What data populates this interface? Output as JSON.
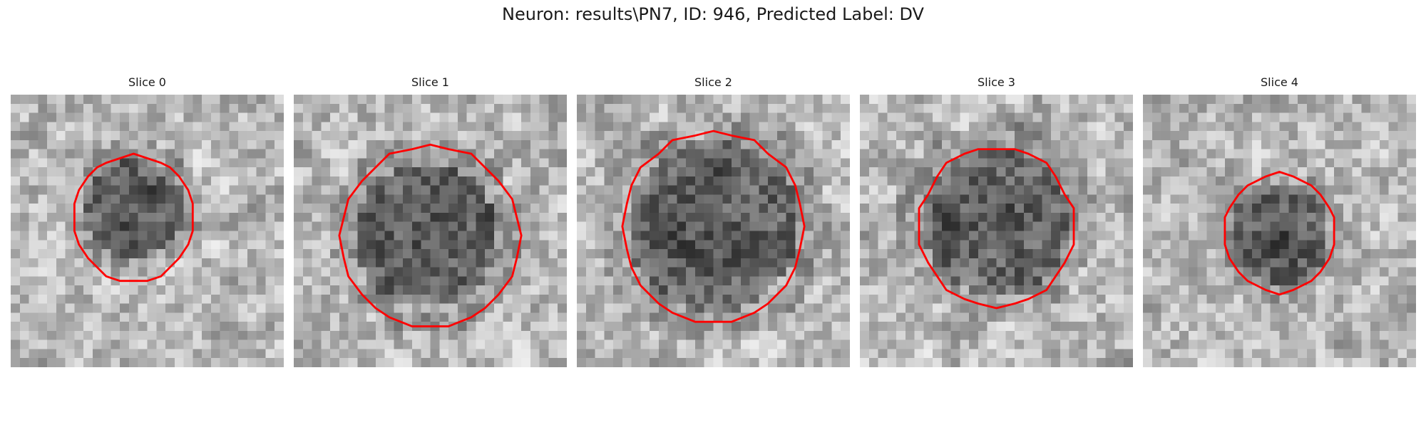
{
  "figure": {
    "title": "Neuron: results\\PN7, ID: 946, Predicted Label: DV"
  },
  "panels": [
    {
      "title": "Slice 0",
      "roi": {
        "cx": 13.5,
        "cy": 13.6,
        "rx": 6.5,
        "ry": 7.0,
        "dark_cx": 13.5,
        "dark_cy": 12.5,
        "dark_r": 5.5,
        "seed": 11
      }
    },
    {
      "title": "Slice 1",
      "roi": {
        "cx": 15.0,
        "cy": 15.6,
        "rx": 9.8,
        "ry": 10.0,
        "dark_cx": 14.5,
        "dark_cy": 15.5,
        "dark_r": 8.0,
        "seed": 23
      }
    },
    {
      "title": "Slice 2",
      "roi": {
        "cx": 15.0,
        "cy": 14.6,
        "rx": 10.0,
        "ry": 10.6,
        "dark_cx": 15.0,
        "dark_cy": 14.5,
        "dark_r": 9.5,
        "seed": 37
      }
    },
    {
      "title": "Slice 3",
      "roi": {
        "cx": 15.0,
        "cy": 14.6,
        "rx": 8.6,
        "ry": 8.8,
        "dark_cx": 15.0,
        "dark_cy": 14.0,
        "dark_r": 8.0,
        "seed": 41
      }
    },
    {
      "title": "Slice 4",
      "roi": {
        "cx": 15.0,
        "cy": 15.2,
        "rx": 5.9,
        "ry": 6.6,
        "dark_cx": 15.0,
        "dark_cy": 15.5,
        "dark_r": 5.5,
        "seed": 53
      }
    }
  ],
  "colors": {
    "roi_outline": "#ff0000",
    "image_cmap": "gray"
  }
}
